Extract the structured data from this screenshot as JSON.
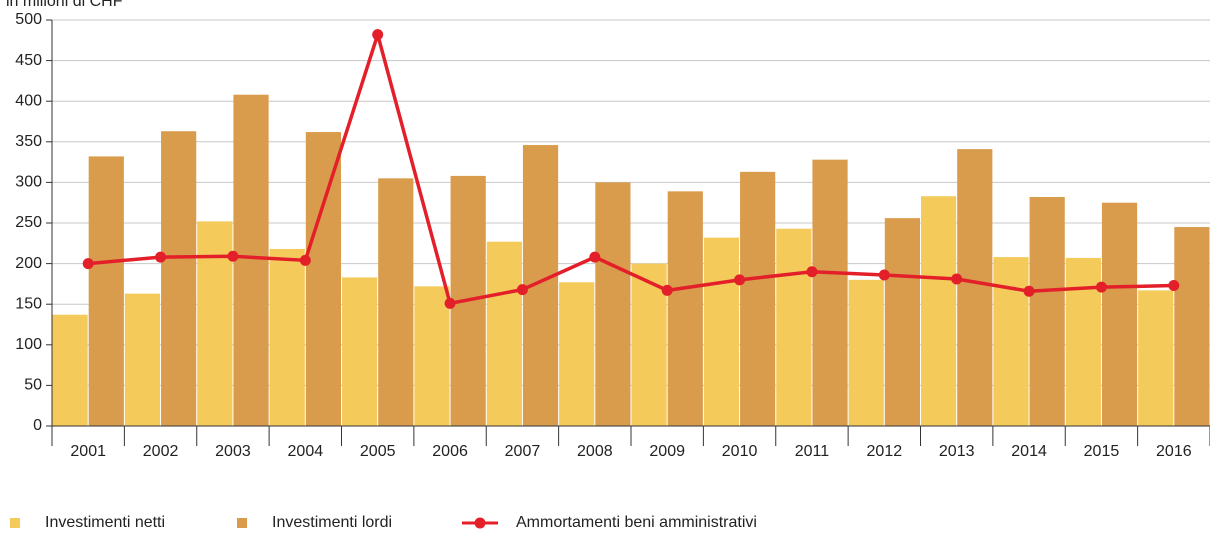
{
  "chart_data": {
    "type": "bar_line",
    "y_label": "in milioni di CHF",
    "categories": [
      "2001",
      "2002",
      "2003",
      "2004",
      "2005",
      "2006",
      "2007",
      "2008",
      "2009",
      "2010",
      "2011",
      "2012",
      "2013",
      "2014",
      "2015",
      "2016"
    ],
    "series": [
      {
        "name": "Investimenti netti",
        "type": "bar",
        "color": "#f4cb5b",
        "values": [
          137,
          163,
          252,
          218,
          183,
          172,
          227,
          177,
          200,
          232,
          243,
          180,
          283,
          208,
          207,
          167
        ]
      },
      {
        "name": "Investimenti lordi",
        "type": "bar",
        "color": "#d99b4c",
        "values": [
          332,
          363,
          408,
          362,
          305,
          308,
          346,
          300,
          289,
          313,
          328,
          256,
          341,
          282,
          275,
          245
        ]
      },
      {
        "name": "Ammortamenti beni amministrativi",
        "type": "line",
        "color": "#e3202a",
        "values": [
          200,
          208,
          209,
          204,
          482,
          151,
          168,
          208,
          167,
          180,
          190,
          186,
          181,
          166,
          171,
          173
        ]
      }
    ],
    "ylim": [
      0,
      500
    ],
    "yticks": [
      0,
      50,
      100,
      150,
      200,
      250,
      300,
      350,
      400,
      450,
      500
    ],
    "grid": true,
    "legend": "bottom-left"
  }
}
